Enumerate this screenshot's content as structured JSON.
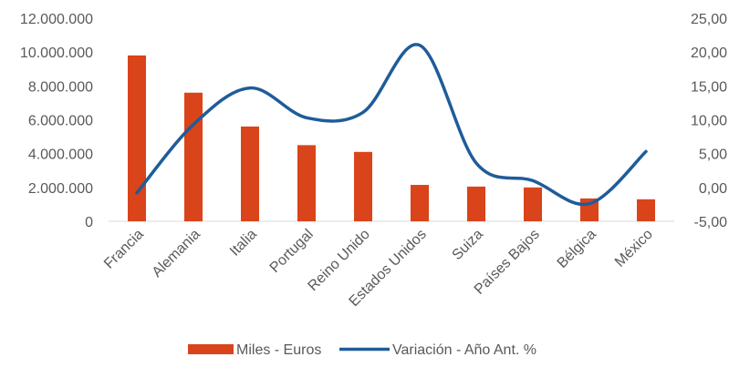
{
  "chart_data": {
    "type": "bar",
    "title": "",
    "categories": [
      "Francia",
      "Alemania",
      "Italia",
      "Portugal",
      "Reino Unido",
      "Estados Unidos",
      "Suiza",
      "Países Bajos",
      "Bélgica",
      "México"
    ],
    "series": [
      {
        "name": "Miles - Euros",
        "type": "bar",
        "axis": "left",
        "color": "#D9441A",
        "values": [
          9800000,
          7600000,
          5600000,
          4500000,
          4100000,
          2150000,
          2050000,
          2000000,
          1350000,
          1300000
        ]
      },
      {
        "name": "Variación - Año Ant. %",
        "type": "line",
        "smooth": true,
        "axis": "right",
        "color": "#1F5C99",
        "values": [
          -0.8,
          9.3,
          14.7,
          10.3,
          11.1,
          21.0,
          3.6,
          1.0,
          -2.4,
          5.3
        ]
      }
    ],
    "left_axis": {
      "ylim": [
        0,
        12000000
      ],
      "ticks": [
        0,
        2000000,
        4000000,
        6000000,
        8000000,
        10000000,
        12000000
      ],
      "tick_labels": [
        "0",
        "2.000.000",
        "4.000.000",
        "6.000.000",
        "8.000.000",
        "10.000.000",
        "12.000.000"
      ]
    },
    "right_axis": {
      "ylim": [
        -5,
        25
      ],
      "ticks": [
        -5,
        0,
        5,
        10,
        15,
        20,
        25
      ],
      "tick_labels": [
        "-5,00",
        "0,00",
        "5,00",
        "10,00",
        "15,00",
        "20,00",
        "25,00"
      ]
    },
    "legend": {
      "placement": "bottom",
      "items": [
        "Miles - Euros",
        "Variación - Año Ant. %"
      ]
    },
    "grid": false
  }
}
